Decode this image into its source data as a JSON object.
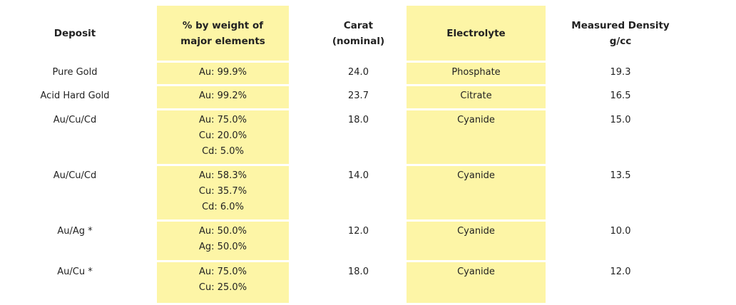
{
  "table": {
    "headers": [
      [
        "Deposit"
      ],
      [
        "% by weight of",
        "major elements"
      ],
      [
        "Carat",
        "(nominal)"
      ],
      [
        "Electrolyte"
      ],
      [
        "Measured Density",
        "g/cc"
      ]
    ],
    "rows": [
      [
        [
          "Pure Gold"
        ],
        [
          "Au: 99.9%"
        ],
        [
          "24.0"
        ],
        [
          "Phosphate"
        ],
        [
          "19.3"
        ]
      ],
      [
        [
          "Acid Hard Gold"
        ],
        [
          "Au: 99.2%"
        ],
        [
          "23.7"
        ],
        [
          "Citrate"
        ],
        [
          "16.5"
        ]
      ],
      [
        [
          "Au/Cu/Cd"
        ],
        [
          "Au: 75.0%",
          "Cu: 20.0%",
          "Cd: 5.0%"
        ],
        [
          "18.0"
        ],
        [
          "Cyanide"
        ],
        [
          "15.0"
        ]
      ],
      [
        [
          "Au/Cu/Cd"
        ],
        [
          "Au: 58.3%",
          "Cu: 35.7%",
          "Cd: 6.0%"
        ],
        [
          "14.0"
        ],
        [
          "Cyanide"
        ],
        [
          "13.5"
        ]
      ],
      [
        [
          "Au/Ag *"
        ],
        [
          "Au: 50.0%",
          "Ag: 50.0%"
        ],
        [
          "12.0"
        ],
        [
          "Cyanide"
        ],
        [
          "10.0"
        ]
      ],
      [
        [
          "Au/Cu *"
        ],
        [
          "Au: 75.0%",
          "Cu: 25.0%"
        ],
        [
          "18.0"
        ],
        [
          "Cyanide"
        ],
        [
          "12.0"
        ]
      ]
    ]
  }
}
